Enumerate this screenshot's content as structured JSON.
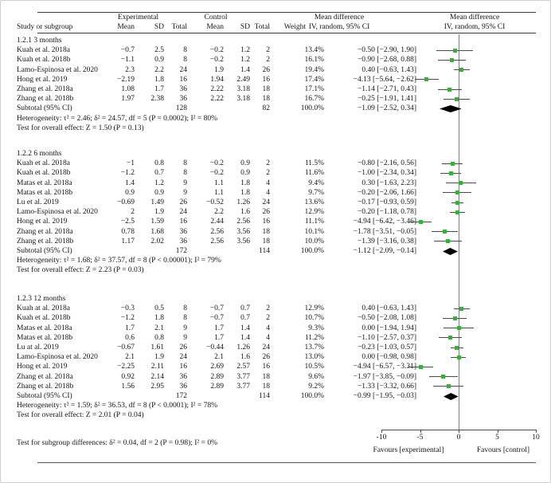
{
  "header": {
    "study_col": "Study or subgroup",
    "experimental": "Experimental",
    "control": "Control",
    "mean": "Mean",
    "sd": "SD",
    "total": "Total",
    "weight": "Weight",
    "md_text_title": "Mean difference",
    "md_text_sub": "IV, random, 95% CI",
    "md_plot_title": "Mean difference",
    "md_plot_sub": "IV, random, 95% CI"
  },
  "footer": {
    "subgroup_difference": "Test for subgroup differences: δ² = 0.04, df = 2 (P = 0.98); I² = 0%"
  },
  "colors": {
    "marker_green": "#33b333",
    "diamond_black": "#000000",
    "ci_line": "#4a4a4a",
    "zero_line": "#808080"
  },
  "chart_data": {
    "type": "scatter",
    "subtype": "forest-plot",
    "title": "Mean difference, IV, random, 95% CI",
    "x_axis": {
      "min": -10,
      "max": 10,
      "ticks": [
        -10,
        -5,
        0,
        5,
        10
      ],
      "label_left": "Favours [experimental]",
      "label_right": "Favours [control]"
    },
    "sections": [
      {
        "label": "1.2.1 3 months",
        "studies": [
          {
            "name": "Kuah et al. 2018a",
            "e_mean": "−0.7",
            "e_sd": "2.5",
            "e_total": "8",
            "c_mean": "−0.2",
            "c_sd": "1.2",
            "c_total": "2",
            "weight": "13.4%",
            "md": -0.5,
            "lo": -2.9,
            "hi": 1.9,
            "ci": "−0.50 [−2.90, 1.90]"
          },
          {
            "name": "Kuah et al. 2018b",
            "e_mean": "−1.1",
            "e_sd": "0.9",
            "e_total": "8",
            "c_mean": "−0.2",
            "c_sd": "1.2",
            "c_total": "2",
            "weight": "16.1%",
            "md": -0.9,
            "lo": -2.68,
            "hi": 0.88,
            "ci": "−0.90 [−2.68, 0.88]"
          },
          {
            "name": "Lamo-Espinosa et al. 2020",
            "e_mean": "2.3",
            "e_sd": "2.2",
            "e_total": "24",
            "c_mean": "1.9",
            "c_sd": "1.4",
            "c_total": "26",
            "weight": "19.4%",
            "md": 0.4,
            "lo": -0.63,
            "hi": 1.43,
            "ci": "0.40 [−0.63, 1.43]"
          },
          {
            "name": "Hong et al. 2019",
            "e_mean": "−2.19",
            "e_sd": "1.8",
            "e_total": "16",
            "c_mean": "1.94",
            "c_sd": "2.49",
            "c_total": "16",
            "weight": "17.4%",
            "md": -4.13,
            "lo": -5.64,
            "hi": -2.62,
            "ci": "−4.13 [−5.64, −2.62]"
          },
          {
            "name": "Zhang et al. 2018a",
            "e_mean": "1.08",
            "e_sd": "1.7",
            "e_total": "36",
            "c_mean": "2.22",
            "c_sd": "3.18",
            "c_total": "18",
            "weight": "17.1%",
            "md": -1.14,
            "lo": -2.71,
            "hi": 0.43,
            "ci": "−1.14 [−2.71, 0.43]"
          },
          {
            "name": "Zhang et al. 2018b",
            "e_mean": "1.97",
            "e_sd": "2.38",
            "e_total": "36",
            "c_mean": "2.22",
            "c_sd": "3.18",
            "c_total": "18",
            "weight": "16.7%",
            "md": -0.25,
            "lo": -1.91,
            "hi": 1.41,
            "ci": "−0.25 [−1.91, 1.41]"
          }
        ],
        "subtotal": {
          "label": "Subtotal (95% CI)",
          "e_total": "128",
          "c_total": "82",
          "weight": "100.0%",
          "md": -1.09,
          "lo": -2.52,
          "hi": 0.34,
          "ci": "−1.09 [−2.52, 0.34]"
        },
        "heterogeneity": "Heterogeneity: τ² = 2.46; δ² = 24.57, df = 5 (P = 0.0002); I² = 80%",
        "overall": "Test for overall effect: Z = 1.50 (P = 0.13)"
      },
      {
        "label": "1.2.2 6 months",
        "studies": [
          {
            "name": "Kuah et al. 2018a",
            "e_mean": "−1",
            "e_sd": "0.8",
            "e_total": "8",
            "c_mean": "−0.2",
            "c_sd": "0.9",
            "c_total": "2",
            "weight": "11.5%",
            "md": -0.8,
            "lo": -2.16,
            "hi": 0.56,
            "ci": "−0.80 [−2.16, 0.56]"
          },
          {
            "name": "Kuah et al. 2018b",
            "e_mean": "−1.2",
            "e_sd": "0.7",
            "e_total": "8",
            "c_mean": "−0.2",
            "c_sd": "0.9",
            "c_total": "2",
            "weight": "11.6%",
            "md": -1.0,
            "lo": -2.34,
            "hi": 0.34,
            "ci": "−1.00 [−2.34, 0.34]"
          },
          {
            "name": "Matas et al. 2018a",
            "e_mean": "1.4",
            "e_sd": "1.2",
            "e_total": "9",
            "c_mean": "1.1",
            "c_sd": "1.8",
            "c_total": "4",
            "weight": "9.4%",
            "md": 0.3,
            "lo": -1.63,
            "hi": 2.23,
            "ci": "0.30 [−1.63, 2.23]"
          },
          {
            "name": "Matas et al. 2018b",
            "e_mean": "0.9",
            "e_sd": "0.9",
            "e_total": "9",
            "c_mean": "1.1",
            "c_sd": "1.8",
            "c_total": "4",
            "weight": "9.7%",
            "md": -0.2,
            "lo": -2.06,
            "hi": 1.66,
            "ci": "−0.20 [−2.06, 1.66]"
          },
          {
            "name": "Lu et al. 2019",
            "e_mean": "−0.69",
            "e_sd": "1.49",
            "e_total": "26",
            "c_mean": "−0.52",
            "c_sd": "1.26",
            "c_total": "24",
            "weight": "13.6%",
            "md": -0.17,
            "lo": -0.93,
            "hi": 0.59,
            "ci": "−0.17 [−0.93, 0.59]"
          },
          {
            "name": "Lamo-Espinosa et al. 2020",
            "e_mean": "2",
            "e_sd": "1.9",
            "e_total": "24",
            "c_mean": "2.2",
            "c_sd": "1.6",
            "c_total": "26",
            "weight": "12.9%",
            "md": -0.2,
            "lo": -1.18,
            "hi": 0.78,
            "ci": "−0.20 [−1.18, 0.78]"
          },
          {
            "name": "Hong et al. 2019",
            "e_mean": "−2.5",
            "e_sd": "1.59",
            "e_total": "16",
            "c_mean": "2.44",
            "c_sd": "2.56",
            "c_total": "16",
            "weight": "11.1%",
            "md": -4.94,
            "lo": -6.42,
            "hi": -3.46,
            "ci": "−4.94 [−6.42, −3.46]"
          },
          {
            "name": "Zhang et al. 2018a",
            "e_mean": "0.78",
            "e_sd": "1.68",
            "e_total": "36",
            "c_mean": "2.56",
            "c_sd": "3.56",
            "c_total": "18",
            "weight": "10.1%",
            "md": -1.78,
            "lo": -3.51,
            "hi": -0.05,
            "ci": "−1.78 [−3.51, −0.05]"
          },
          {
            "name": "Zhang et al. 2018b",
            "e_mean": "1.17",
            "e_sd": "2.02",
            "e_total": "36",
            "c_mean": "2.56",
            "c_sd": "3.56",
            "c_total": "18",
            "weight": "10.0%",
            "md": -1.39,
            "lo": -3.16,
            "hi": 0.38,
            "ci": "−1.39 [−3.16, 0.38]"
          }
        ],
        "subtotal": {
          "label": "Subtotal (95% CI)",
          "e_total": "172",
          "c_total": "114",
          "weight": "100.0%",
          "md": -1.12,
          "lo": -2.09,
          "hi": -0.14,
          "ci": "−1.12 [−2.09, −0.14]"
        },
        "heterogeneity": "Heterogeneity: τ² = 1.68; δ² = 37.57, df = 8 (P < 0.00001); I² = 79%",
        "overall": "Test for overall effect: Z = 2.23 (P = 0.03)"
      },
      {
        "label": "1.2.3 12 months",
        "studies": [
          {
            "name": "Kuah at al. 2018a",
            "e_mean": "−0.3",
            "e_sd": "0.5",
            "e_total": "8",
            "c_mean": "−0.7",
            "c_sd": "0.7",
            "c_total": "2",
            "weight": "12.9%",
            "md": 0.4,
            "lo": -0.63,
            "hi": 1.43,
            "ci": "0.40 [−0.63, 1.43]"
          },
          {
            "name": "Kuah et al. 2018b",
            "e_mean": "−1.2",
            "e_sd": "1.8",
            "e_total": "8",
            "c_mean": "−0.7",
            "c_sd": "0.7",
            "c_total": "2",
            "weight": "10.7%",
            "md": -0.5,
            "lo": -2.08,
            "hi": 1.08,
            "ci": "−0.50 [−2.08, 1.08]"
          },
          {
            "name": "Matas et al. 2018a",
            "e_mean": "1.7",
            "e_sd": "2.1",
            "e_total": "9",
            "c_mean": "1.7",
            "c_sd": "1.4",
            "c_total": "4",
            "weight": "9.3%",
            "md": 0.0,
            "lo": -1.94,
            "hi": 1.94,
            "ci": "0.00 [−1.94, 1.94]"
          },
          {
            "name": "Matas et al. 2018b",
            "e_mean": "0.6",
            "e_sd": "0.8",
            "e_total": "9",
            "c_mean": "1.7",
            "c_sd": "1.4",
            "c_total": "4",
            "weight": "11.2%",
            "md": -1.1,
            "lo": -2.57,
            "hi": 0.37,
            "ci": "−1.10 [−2.57, 0.37]"
          },
          {
            "name": "Lu at al. 2019",
            "e_mean": "−0.67",
            "e_sd": "1.61",
            "e_total": "26",
            "c_mean": "−0.44",
            "c_sd": "1.26",
            "c_total": "24",
            "weight": "13.7%",
            "md": -0.23,
            "lo": -1.03,
            "hi": 0.57,
            "ci": "−0.23 [−1.03, 0.57]"
          },
          {
            "name": "Lamo-Espinosa et al. 2020",
            "e_mean": "2.1",
            "e_sd": "1.9",
            "e_total": "24",
            "c_mean": "2.1",
            "c_sd": "1.6",
            "c_total": "26",
            "weight": "13.0%",
            "md": 0.0,
            "lo": -0.98,
            "hi": 0.98,
            "ci": "0.00 [−0.98, 0.98]"
          },
          {
            "name": "Hong et al. 2019",
            "e_mean": "−2.25",
            "e_sd": "2.11",
            "e_total": "16",
            "c_mean": "2.69",
            "c_sd": "2.57",
            "c_total": "16",
            "weight": "10.5%",
            "md": -4.94,
            "lo": -6.57,
            "hi": -3.31,
            "ci": "−4.94 [−6.57, −3.31]"
          },
          {
            "name": "Zhang et al. 2018a",
            "e_mean": "0.92",
            "e_sd": "2.14",
            "e_total": "36",
            "c_mean": "2.89",
            "c_sd": "3.77",
            "c_total": "18",
            "weight": "9.6%",
            "md": -1.97,
            "lo": -3.85,
            "hi": -0.09,
            "ci": "−1.97 [−3.85, −0.09]"
          },
          {
            "name": "Zhang et al. 2018b",
            "e_mean": "1.56",
            "e_sd": "2.95",
            "e_total": "36",
            "c_mean": "2.89",
            "c_sd": "3.77",
            "c_total": "18",
            "weight": "9.2%",
            "md": -1.33,
            "lo": -3.32,
            "hi": 0.66,
            "ci": "−1.33 [−3.32, 0.66]"
          }
        ],
        "subtotal": {
          "label": "Subtotal (95% CI)",
          "e_total": "172",
          "c_total": "114",
          "weight": "100.0%",
          "md": -0.99,
          "lo": -1.95,
          "hi": -0.03,
          "ci": "−0.99 [−1.95, −0.03]"
        },
        "heterogeneity": "Heterogeneity: τ² = 1.59; δ² = 36.53, df = 8 (P < 0.0001); I² = 78%",
        "overall": "Test for overall effect: Z = 2.01 (P = 0.04)"
      }
    ]
  }
}
